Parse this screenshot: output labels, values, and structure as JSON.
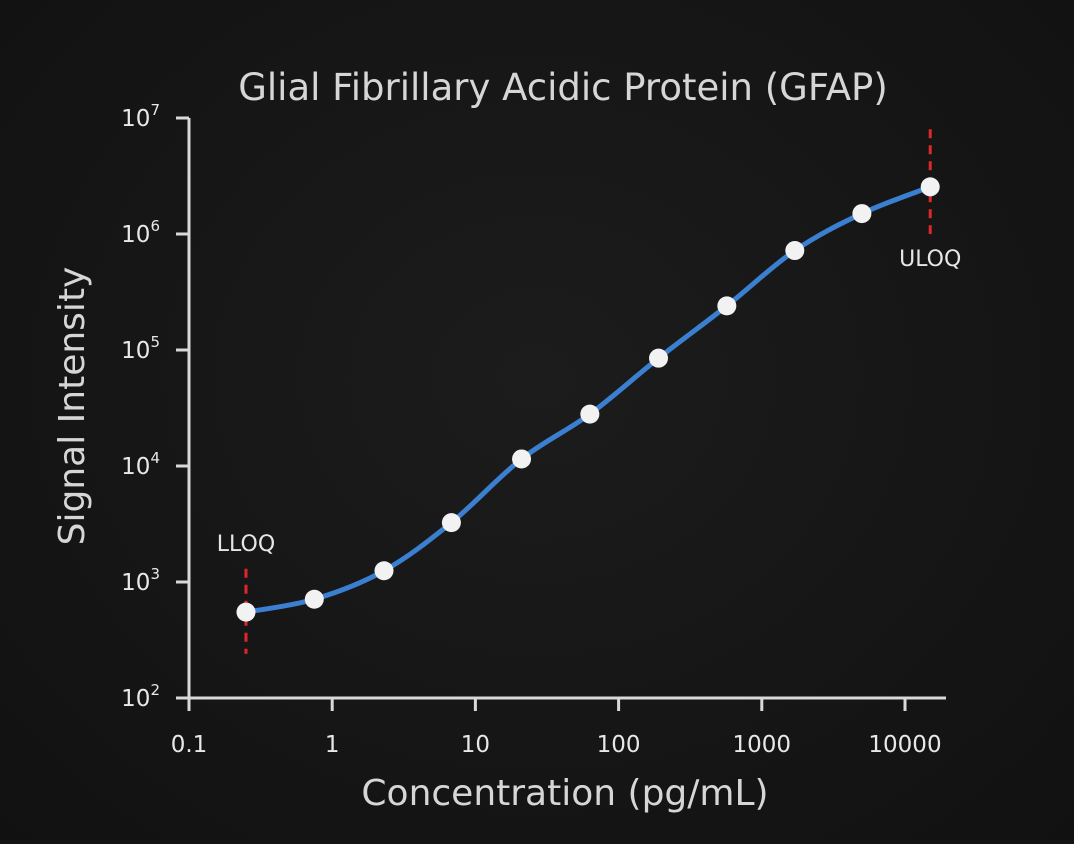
{
  "chart_data": {
    "type": "line",
    "title": "Glial Fibrillary Acidic Protein (GFAP)",
    "xlabel": "Concentration (pg/mL)",
    "ylabel": "Signal Intensity",
    "xscale": "log",
    "yscale": "log",
    "xlim": [
      0.1,
      20000
    ],
    "ylim": [
      100,
      10000000
    ],
    "grid": false,
    "x_ticks": [
      {
        "value": 0.1,
        "label": "0.1"
      },
      {
        "value": 1,
        "label": "1"
      },
      {
        "value": 10,
        "label": "10"
      },
      {
        "value": 100,
        "label": "100"
      },
      {
        "value": 1000,
        "label": "1000"
      },
      {
        "value": 10000,
        "label": "10000"
      }
    ],
    "y_ticks": [
      {
        "value": 100,
        "base": "10",
        "exp": "2"
      },
      {
        "value": 1000,
        "base": "10",
        "exp": "3"
      },
      {
        "value": 10000,
        "base": "10",
        "exp": "4"
      },
      {
        "value": 100000,
        "base": "10",
        "exp": "5"
      },
      {
        "value": 1000000,
        "base": "10",
        "exp": "6"
      },
      {
        "value": 10000000,
        "base": "10",
        "exp": "7"
      }
    ],
    "series": [
      {
        "color": "#3a7fd0",
        "marker_color": "#f2f2f2",
        "points": [
          {
            "x": 0.25,
            "y": 550
          },
          {
            "x": 0.75,
            "y": 710
          },
          {
            "x": 2.3,
            "y": 1250
          },
          {
            "x": 6.8,
            "y": 3250
          },
          {
            "x": 21,
            "y": 11500
          },
          {
            "x": 63,
            "y": 28000
          },
          {
            "x": 190,
            "y": 85000
          },
          {
            "x": 570,
            "y": 240000
          },
          {
            "x": 1700,
            "y": 720000
          },
          {
            "x": 5000,
            "y": 1500000
          },
          {
            "x": 15000,
            "y": 2550000
          }
        ]
      }
    ],
    "annotations": [
      {
        "label": "LLOQ",
        "x": 0.25,
        "y_from": 240,
        "y_to": 1300,
        "color": "#e0262a",
        "label_side": "above"
      },
      {
        "label": "ULOQ",
        "x": 15000,
        "y_from": 1000000,
        "y_to": 8000000,
        "color": "#e0262a",
        "label_side": "below"
      }
    ]
  }
}
